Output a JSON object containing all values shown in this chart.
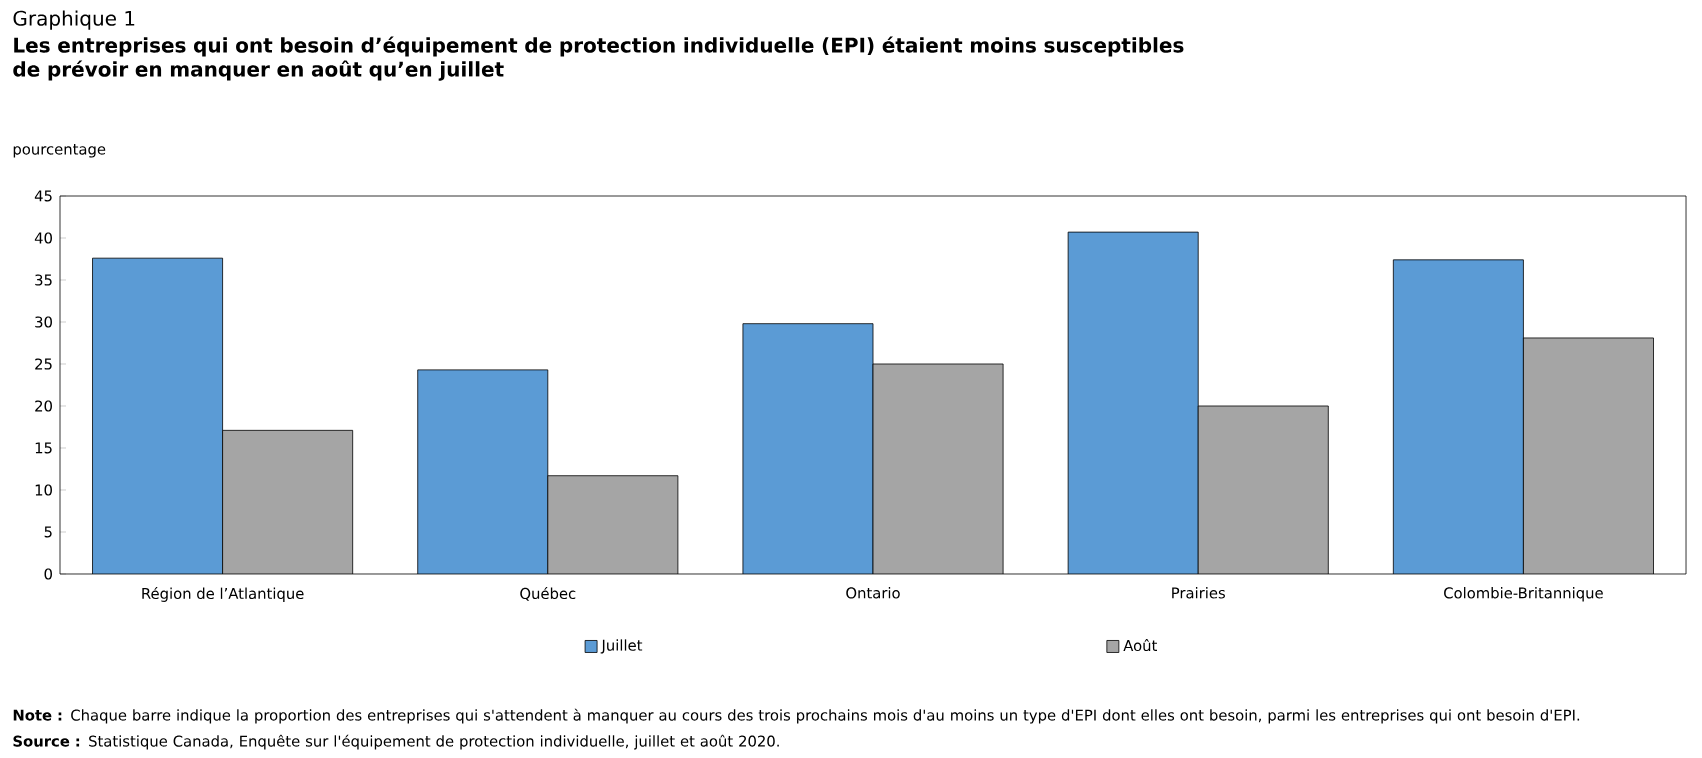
{
  "chart_data": {
    "type": "bar",
    "title": "Graphique 1",
    "subtitle": "Les entreprises qui ont besoin d’équipement de protection individuelle (EPI) étaient moins susceptibles de prévoir en manquer en août qu’en juillet",
    "ylabel": "pourcentage",
    "categories": [
      "Région de l’Atlantique",
      "Québec",
      "Ontario",
      "Prairies",
      "Colombie-Britannique"
    ],
    "series": [
      {
        "name": "Juillet",
        "color": "#5b9bd5",
        "values": [
          37.6,
          24.3,
          29.8,
          40.7,
          37.4
        ]
      },
      {
        "name": "Août",
        "color": "#a5a5a5",
        "values": [
          17.1,
          11.7,
          25.0,
          20.0,
          28.1
        ]
      }
    ],
    "ylim": [
      0,
      45
    ],
    "yticks": [
      0,
      5,
      10,
      15,
      20,
      25,
      30,
      35,
      40,
      45
    ],
    "grid": false,
    "legend": "bottom",
    "annotations": [
      "**Note :** Chaque barre indique la proportion des entreprises qui s'attendent à manquer au cours des trois prochains mois d'au moins un type d'EPI dont elles ont besoin, parmi les entreprises qui ont besoin d'EPI.",
      "**Source :** Statistique Canada, Enquête sur l'équipement de protection individuelle, juillet et août 2020."
    ]
  }
}
